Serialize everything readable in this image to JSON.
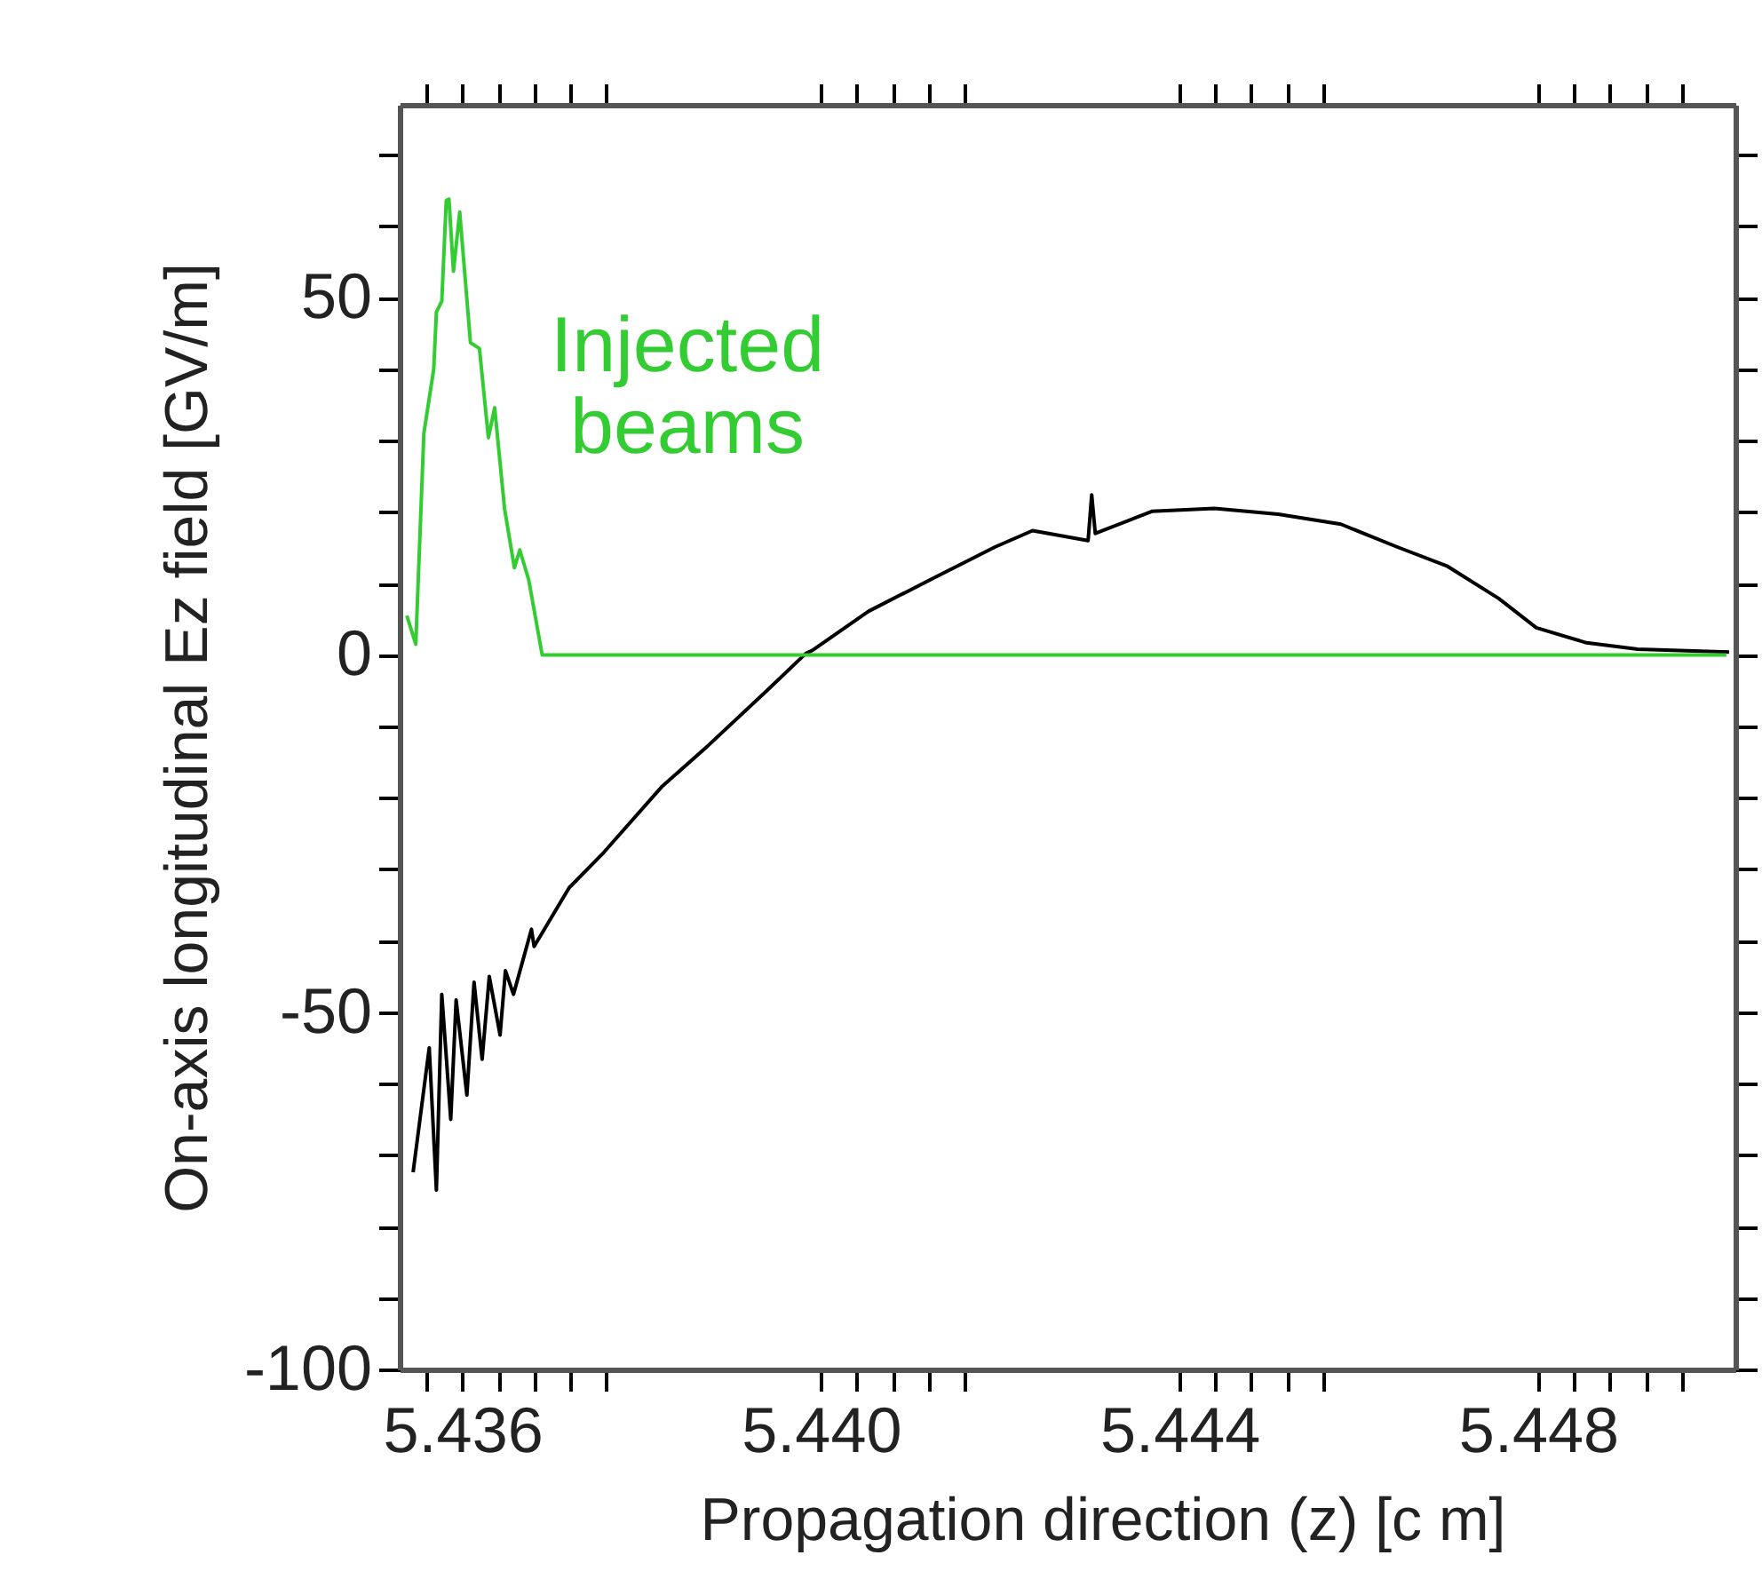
{
  "chart_data": {
    "type": "line",
    "xlabel": "Propagation direction (z) [c m]",
    "ylabel": "On-axis longitudinal Ez field [GV/m]",
    "xlim": [
      5.4353,
      5.4502
    ],
    "ylim": [
      -100,
      77
    ],
    "xticks": [
      {
        "value": 5.436,
        "label": "5.436"
      },
      {
        "value": 5.4364,
        "label": null
      },
      {
        "value": 5.4368,
        "label": null
      },
      {
        "value": 5.4372,
        "label": null
      },
      {
        "value": 5.4376,
        "label": null
      },
      {
        "value": 5.44,
        "label": "5.440"
      },
      {
        "value": 5.4404,
        "label": null
      },
      {
        "value": 5.4408,
        "label": null
      },
      {
        "value": 5.4412,
        "label": null
      },
      {
        "value": 5.4416,
        "label": null
      },
      {
        "value": 5.444,
        "label": "5.444"
      },
      {
        "value": 5.4444,
        "label": null
      },
      {
        "value": 5.4448,
        "label": null
      },
      {
        "value": 5.4452,
        "label": null
      },
      {
        "value": 5.4456,
        "label": null
      },
      {
        "value": 5.448,
        "label": "5.448"
      },
      {
        "value": 5.4484,
        "label": null
      },
      {
        "value": 5.4488,
        "label": null
      },
      {
        "value": 5.4492,
        "label": null
      },
      {
        "value": 5.4496,
        "label": null
      },
      {
        "value": 5.4356,
        "label": null
      }
    ],
    "yticks": [
      -100,
      {
        "value": -90,
        "label": null
      },
      {
        "value": -80,
        "label": null
      },
      {
        "value": -70,
        "label": null
      },
      {
        "value": -60,
        "label": null
      },
      -50,
      {
        "value": -40,
        "label": null
      },
      {
        "value": -30,
        "label": null
      },
      {
        "value": -20,
        "label": null
      },
      {
        "value": -10,
        "label": null
      },
      0,
      {
        "value": 10,
        "label": null
      },
      {
        "value": 20,
        "label": null
      },
      {
        "value": 30,
        "label": null
      },
      {
        "value": 40,
        "label": null
      },
      50,
      {
        "value": 60,
        "label": null
      },
      {
        "value": 70,
        "label": null
      }
    ],
    "grid": false,
    "marker": "none",
    "line_style": "solid",
    "series": [
      {
        "name": null,
        "color": "#000000",
        "x": [
          5.43545,
          5.43563,
          5.43571,
          5.43577,
          5.43587,
          5.43593,
          5.43605,
          5.43613,
          5.43622,
          5.4363,
          5.43642,
          5.43648,
          5.43657,
          5.43677,
          5.4368,
          5.43719,
          5.43758,
          5.43822,
          5.43874,
          5.43938,
          5.43983,
          5.4399,
          5.44053,
          5.44123,
          5.44194,
          5.44236,
          5.44298,
          5.44302,
          5.44306,
          5.44369,
          5.44439,
          5.4451,
          5.4458,
          5.44643,
          5.44699,
          5.44756,
          5.44798,
          5.44854,
          5.44911,
          5.45013
        ],
        "values": [
          -72.4,
          -55,
          -74.9,
          -47.5,
          -65,
          -48.3,
          -61.6,
          -45.8,
          -56.6,
          -45,
          -53.2,
          -44.2,
          -47.5,
          -38.4,
          -40.8,
          -32.6,
          -27.6,
          -18.5,
          -12.7,
          -5.2,
          0.2,
          0.6,
          6.1,
          10.6,
          15.1,
          17.4,
          16,
          22.4,
          17,
          20.1,
          20.5,
          19.7,
          18.3,
          15.1,
          12.4,
          7.9,
          3.8,
          1.7,
          0.8,
          0.4
        ]
      },
      {
        "name": "Injected beams",
        "color": "#33cc33",
        "x": [
          5.43538,
          5.43548,
          5.43557,
          5.43568,
          5.43571,
          5.43577,
          5.43582,
          5.43585,
          5.4359,
          5.43597,
          5.43609,
          5.43619,
          5.43629,
          5.43636,
          5.43647,
          5.43658,
          5.43664,
          5.43674,
          5.43689,
          5.4501
        ],
        "values": [
          5.5,
          1.5,
          31,
          40,
          48,
          49.5,
          63.6,
          63.8,
          53.7,
          62,
          43.7,
          42.9,
          30.4,
          34.6,
          20.5,
          12.2,
          14.7,
          10.5,
          0,
          0
        ]
      }
    ]
  }
}
